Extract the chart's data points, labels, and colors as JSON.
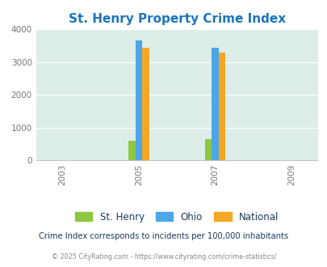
{
  "title": "St. Henry Property Crime Index",
  "years": [
    2003,
    2005,
    2007,
    2009
  ],
  "bar_years": [
    2005,
    2007
  ],
  "st_henry": [
    600,
    650
  ],
  "ohio": [
    3670,
    3450
  ],
  "national": [
    3430,
    3280
  ],
  "colors": {
    "st_henry": "#8dc63f",
    "ohio": "#4da6e8",
    "national": "#f5a623"
  },
  "ylim": [
    0,
    4000
  ],
  "yticks": [
    0,
    1000,
    2000,
    3000,
    4000
  ],
  "bg_color": "#ddeee8",
  "title_color": "#1b75bb",
  "subtitle": "Crime Index corresponds to incidents per 100,000 inhabitants",
  "copyright": "© 2025 CityRating.com - https://www.cityrating.com/crime-statistics/",
  "bar_width": 0.18,
  "legend_labels": [
    "St. Henry",
    "Ohio",
    "National"
  ],
  "legend_label_color": "#1a3a5c",
  "subtitle_color": "#1a3a5c",
  "copyright_color": "#888888",
  "tick_color": "#777777"
}
